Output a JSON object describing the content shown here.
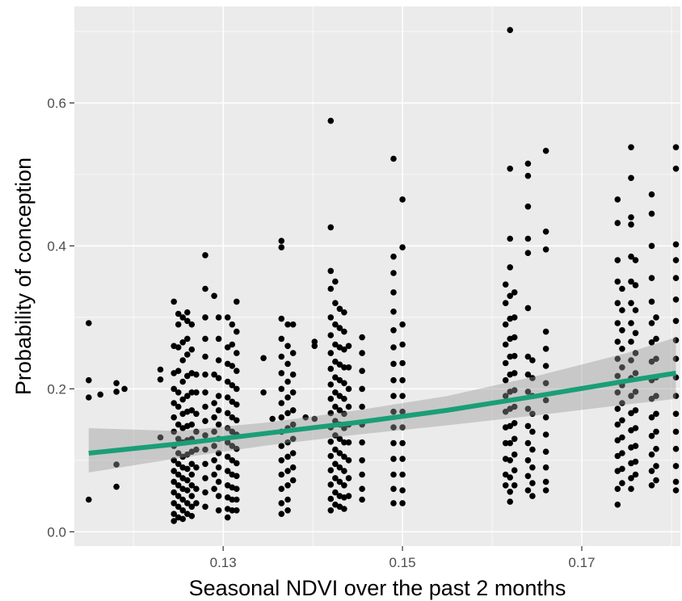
{
  "chart_data": {
    "type": "scatter",
    "title": "",
    "xlabel": "Seasonal NDVI over the past 2 months",
    "ylabel": "Probability of conception",
    "xlim": [
      0.1134,
      0.181
    ],
    "ylim": [
      -0.02,
      0.735
    ],
    "x_ticks": [
      0.13,
      0.15,
      0.17
    ],
    "x_tick_labels": [
      "0.13",
      "0.15",
      "0.17"
    ],
    "y_ticks": [
      0.0,
      0.2,
      0.4,
      0.6
    ],
    "y_tick_labels": [
      "0.0",
      "0.2",
      "0.4",
      "0.6"
    ],
    "grid": true,
    "legend": "none",
    "colors": {
      "panel": "#ebebeb",
      "grid": "#ffffff",
      "points": "#000000",
      "fit_line": "#1b9e77",
      "ribbon": "#999999"
    },
    "fit": {
      "x": [
        0.115,
        0.125,
        0.135,
        0.145,
        0.155,
        0.165,
        0.175,
        0.1805
      ],
      "y": [
        0.11,
        0.123,
        0.138,
        0.153,
        0.17,
        0.19,
        0.211,
        0.222
      ],
      "lower": [
        0.083,
        0.103,
        0.121,
        0.136,
        0.149,
        0.163,
        0.178,
        0.186
      ],
      "upper": [
        0.145,
        0.141,
        0.153,
        0.17,
        0.19,
        0.218,
        0.25,
        0.272
      ]
    },
    "series": [
      {
        "x": 0.115,
        "y": [
          0.292,
          0.212,
          0.188,
          0.045
        ]
      },
      {
        "x": 0.1163,
        "y": [
          0.192
        ]
      },
      {
        "x": 0.1181,
        "y": [
          0.208,
          0.196,
          0.094,
          0.063
        ]
      },
      {
        "x": 0.119,
        "y": [
          0.2
        ]
      },
      {
        "x": 0.123,
        "y": [
          0.227,
          0.213,
          0.132
        ]
      },
      {
        "x": 0.1245,
        "y": [
          0.322,
          0.26,
          0.222,
          0.2,
          0.18,
          0.16,
          0.14,
          0.12,
          0.1,
          0.085,
          0.07,
          0.055,
          0.04,
          0.025,
          0.015
        ]
      },
      {
        "x": 0.125,
        "y": [
          0.305,
          0.29,
          0.258,
          0.225,
          0.195,
          0.175,
          0.15,
          0.13,
          0.11,
          0.095,
          0.08,
          0.065,
          0.05,
          0.035,
          0.02
        ]
      },
      {
        "x": 0.1255,
        "y": [
          0.3,
          0.265,
          0.24,
          0.21,
          0.185,
          0.165,
          0.145,
          0.125,
          0.105,
          0.09,
          0.075,
          0.06,
          0.045,
          0.03,
          0.018
        ]
      },
      {
        "x": 0.126,
        "y": [
          0.307,
          0.295,
          0.27,
          0.248,
          0.218,
          0.19,
          0.168,
          0.148,
          0.128,
          0.108,
          0.088,
          0.072,
          0.058,
          0.04,
          0.025
        ]
      },
      {
        "x": 0.1265,
        "y": [
          0.29,
          0.255,
          0.222,
          0.195,
          0.17,
          0.15,
          0.13,
          0.112,
          0.095,
          0.08,
          0.065,
          0.05,
          0.035,
          0.022
        ]
      },
      {
        "x": 0.127,
        "y": [
          0.22,
          0.195,
          0.165,
          0.14,
          0.115,
          0.09,
          0.06,
          0.04
        ]
      },
      {
        "x": 0.128,
        "y": [
          0.387,
          0.34,
          0.3,
          0.27,
          0.245,
          0.22,
          0.195,
          0.175,
          0.155,
          0.135,
          0.115,
          0.095,
          0.075,
          0.055,
          0.035
        ]
      },
      {
        "x": 0.129,
        "y": [
          0.33,
          0.22,
          0.18,
          0.16,
          0.14,
          0.12,
          0.1,
          0.08,
          0.06
        ]
      },
      {
        "x": 0.1295,
        "y": [
          0.3,
          0.27,
          0.24,
          0.215,
          0.19,
          0.17,
          0.15,
          0.13,
          0.11,
          0.09,
          0.07,
          0.05,
          0.03
        ]
      },
      {
        "x": 0.1305,
        "y": [
          0.3,
          0.258,
          0.235,
          0.21,
          0.188,
          0.166,
          0.145,
          0.125,
          0.105,
          0.085,
          0.065,
          0.048,
          0.032,
          0.02
        ]
      },
      {
        "x": 0.131,
        "y": [
          0.29,
          0.262,
          0.232,
          0.205,
          0.182,
          0.16,
          0.14,
          0.12,
          0.1,
          0.08,
          0.062,
          0.045,
          0.03
        ]
      },
      {
        "x": 0.1315,
        "y": [
          0.322,
          0.28,
          0.25,
          0.225,
          0.2,
          0.178,
          0.156,
          0.136,
          0.116,
          0.096,
          0.078,
          0.06,
          0.045,
          0.03
        ]
      },
      {
        "x": 0.1345,
        "y": [
          0.243,
          0.195
        ]
      },
      {
        "x": 0.1355,
        "y": [
          0.158
        ]
      },
      {
        "x": 0.1365,
        "y": [
          0.407,
          0.398,
          0.298,
          0.27,
          0.245,
          0.222,
          0.2,
          0.18,
          0.16,
          0.14,
          0.12,
          0.1,
          0.08,
          0.06,
          0.04,
          0.025
        ]
      },
      {
        "x": 0.1372,
        "y": [
          0.29,
          0.26,
          0.235,
          0.21,
          0.188,
          0.166,
          0.145,
          0.125,
          0.105,
          0.085,
          0.065,
          0.045,
          0.03
        ]
      },
      {
        "x": 0.1378,
        "y": [
          0.29,
          0.25,
          0.22,
          0.195,
          0.17,
          0.15,
          0.13,
          0.11,
          0.09,
          0.072
        ]
      },
      {
        "x": 0.1392,
        "y": [
          0.16
        ]
      },
      {
        "x": 0.1402,
        "y": [
          0.266,
          0.26,
          0.158
        ]
      },
      {
        "x": 0.142,
        "y": [
          0.575,
          0.426,
          0.365,
          0.34,
          0.3,
          0.275,
          0.25,
          0.228,
          0.206,
          0.186,
          0.166,
          0.146,
          0.126,
          0.106,
          0.086,
          0.066,
          0.046,
          0.03
        ]
      },
      {
        "x": 0.1425,
        "y": [
          0.35,
          0.32,
          0.29,
          0.262,
          0.238,
          0.216,
          0.195,
          0.175,
          0.155,
          0.135,
          0.115,
          0.095,
          0.075,
          0.055,
          0.038
        ]
      },
      {
        "x": 0.143,
        "y": [
          0.312,
          0.285,
          0.258,
          0.234,
          0.212,
          0.19,
          0.17,
          0.15,
          0.13,
          0.11,
          0.09,
          0.07,
          0.05,
          0.035
        ]
      },
      {
        "x": 0.1435,
        "y": [
          0.307,
          0.28,
          0.255,
          0.23,
          0.208,
          0.186,
          0.165,
          0.145,
          0.125,
          0.105,
          0.085,
          0.065,
          0.048,
          0.032
        ]
      },
      {
        "x": 0.144,
        "y": [
          0.26,
          0.23,
          0.2,
          0.175,
          0.15,
          0.125,
          0.1,
          0.075,
          0.05
        ]
      },
      {
        "x": 0.1455,
        "y": [
          0.272,
          0.25,
          0.225,
          0.2,
          0.175,
          0.15,
          0.125,
          0.1,
          0.08,
          0.06,
          0.045
        ]
      },
      {
        "x": 0.149,
        "y": [
          0.522,
          0.385,
          0.362,
          0.335,
          0.308,
          0.282,
          0.258,
          0.235,
          0.212,
          0.19,
          0.168,
          0.146,
          0.124,
          0.102,
          0.08,
          0.06,
          0.04
        ]
      },
      {
        "x": 0.15,
        "y": [
          0.465,
          0.398,
          0.29,
          0.262,
          0.236,
          0.212,
          0.19,
          0.168,
          0.146,
          0.124,
          0.102,
          0.08,
          0.058,
          0.04
        ]
      },
      {
        "x": 0.1615,
        "y": [
          0.346,
          0.32,
          0.29,
          0.262,
          0.236,
          0.212,
          0.19,
          0.168,
          0.146,
          0.124,
          0.102,
          0.08,
          0.065
        ]
      },
      {
        "x": 0.162,
        "y": [
          0.702,
          0.508,
          0.41,
          0.37,
          0.33,
          0.298,
          0.27,
          0.245,
          0.22,
          0.196,
          0.172,
          0.148,
          0.124,
          0.1,
          0.076,
          0.056,
          0.042
        ]
      },
      {
        "x": 0.1625,
        "y": [
          0.335,
          0.3,
          0.272,
          0.246,
          0.222,
          0.198,
          0.175,
          0.152,
          0.13,
          0.108,
          0.086,
          0.065
        ]
      },
      {
        "x": 0.164,
        "y": [
          0.515,
          0.498,
          0.455,
          0.41,
          0.39,
          0.313,
          0.245,
          0.22,
          0.196,
          0.172,
          0.148,
          0.124,
          0.1,
          0.078,
          0.058
        ]
      },
      {
        "x": 0.1645,
        "y": [
          0.24,
          0.215,
          0.19,
          0.165,
          0.14,
          0.115,
          0.09,
          0.068,
          0.05
        ]
      },
      {
        "x": 0.166,
        "y": [
          0.533,
          0.42,
          0.395,
          0.28,
          0.256,
          0.232,
          0.208,
          0.184,
          0.16,
          0.136,
          0.112,
          0.09,
          0.07,
          0.058
        ]
      },
      {
        "x": 0.174,
        "y": [
          0.465,
          0.432,
          0.38,
          0.35,
          0.32,
          0.292,
          0.266,
          0.242,
          0.218,
          0.195,
          0.172,
          0.15,
          0.128,
          0.106,
          0.085,
          0.06,
          0.038
        ]
      },
      {
        "x": 0.1745,
        "y": [
          0.34,
          0.31,
          0.282,
          0.256,
          0.23,
          0.205,
          0.18,
          0.156,
          0.132,
          0.11,
          0.088,
          0.068
        ]
      },
      {
        "x": 0.1755,
        "y": [
          0.538,
          0.495,
          0.44,
          0.43,
          0.385,
          0.35,
          0.32,
          0.292,
          0.266,
          0.24,
          0.215,
          0.19,
          0.166,
          0.142,
          0.118,
          0.096,
          0.075,
          0.06
        ]
      },
      {
        "x": 0.176,
        "y": [
          0.38,
          0.345,
          0.31,
          0.278,
          0.25,
          0.222,
          0.196,
          0.17,
          0.145,
          0.12,
          0.098,
          0.08
        ]
      },
      {
        "x": 0.1778,
        "y": [
          0.472,
          0.445,
          0.4,
          0.355,
          0.322,
          0.292,
          0.265,
          0.238,
          0.212,
          0.186,
          0.16,
          0.134,
          0.108,
          0.085,
          0.065
        ]
      },
      {
        "x": 0.1783,
        "y": [
          0.3,
          0.27,
          0.242,
          0.216,
          0.19,
          0.165,
          0.14,
          0.116,
          0.092,
          0.072
        ]
      },
      {
        "x": 0.1805,
        "y": [
          0.538,
          0.508,
          0.402,
          0.38,
          0.355,
          0.325,
          0.295,
          0.268,
          0.242,
          0.216,
          0.19,
          0.165,
          0.14,
          0.116,
          0.092,
          0.07,
          0.058
        ]
      }
    ]
  }
}
